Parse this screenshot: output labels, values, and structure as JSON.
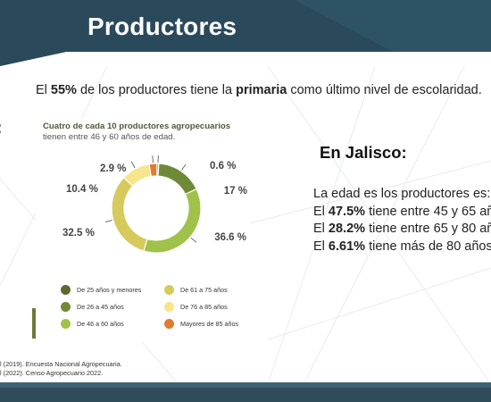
{
  "header": {
    "title": "Productores"
  },
  "intro": {
    "part1": "El ",
    "percent": "55%",
    "part2": " de los productores tiene la ",
    "level": "primaria",
    "part3": " como último nivel de escolaridad."
  },
  "left_fragment": ":",
  "chart_panel": {
    "title": "Cuatro de cada 10 productores agropecuarios",
    "subtitle": "tienen entre 46 y 60 años de edad."
  },
  "chart_data": {
    "type": "pie",
    "style": "donut",
    "title": "Cuatro de cada 10 productores agropecuarios",
    "subtitle": "tienen entre 46 y 60 años de edad.",
    "categories": [
      "De 25 años y menores",
      "De 26 a 45 años",
      "De 46 a 60 años",
      "De 61 a 75 años",
      "De 76 a 85 años",
      "Mayores de 85 años"
    ],
    "values": [
      0.6,
      17,
      36.6,
      32.5,
      10.4,
      2.9
    ],
    "labels": [
      "0.6 %",
      "17 %",
      "36.6 %",
      "32.5 %",
      "10.4 %",
      "2.9 %"
    ],
    "colors": [
      "#5a6b2f",
      "#6f8a37",
      "#9fc24a",
      "#d6ca5d",
      "#f6e58a",
      "#e07b2f"
    ],
    "legend_position": "bottom"
  },
  "legend": [
    {
      "label": "De 25 años y menores",
      "color": "#5a6b2f"
    },
    {
      "label": "De 61 a 75 años",
      "color": "#d6ca5d"
    },
    {
      "label": "De 26 a 45 años",
      "color": "#6f8a37"
    },
    {
      "label": "De 76 a 85 años",
      "color": "#f6e58a"
    },
    {
      "label": "De 46 a 60 años",
      "color": "#9fc24a"
    },
    {
      "label": "Mayores de 85 años",
      "color": "#e07b2f"
    }
  ],
  "sources": {
    "line1": "l (2019). Encuesta Nacional Agropecuaria.",
    "line2": "l (2022). Censo Agropecuario 2022."
  },
  "jalisco": {
    "heading": "En Jalisco:",
    "line1": "La edad es los productores es:",
    "line2_prefix": "El ",
    "line2_value": "47.5%",
    "line2_suffix": " tiene entre 45 y 65 añ",
    "line3_prefix": "El ",
    "line3_value": "28.2%",
    "line3_suffix": " tiene entre 65 y 80 añ",
    "line4_prefix": "El ",
    "line4_value": "6.61%",
    "line4_suffix": " tiene más de 80 años"
  },
  "colors": {
    "header_dark": "#223e4e",
    "header_light": "#2e5365",
    "footer": "#2f4c5b"
  }
}
